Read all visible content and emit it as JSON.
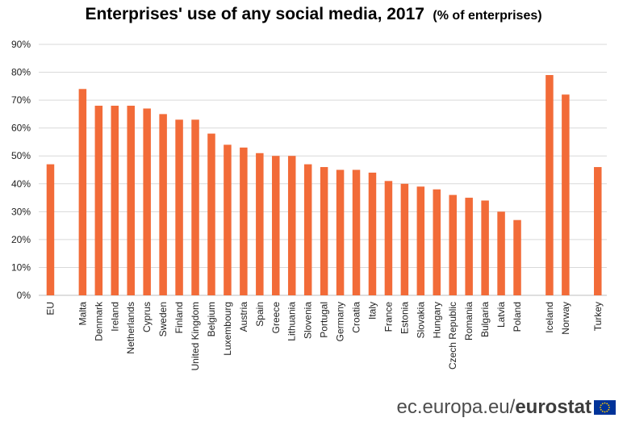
{
  "chart_data": {
    "type": "bar",
    "title": "Enterprises' use of any social media, 2017",
    "subtitle": "(% of enterprises)",
    "xlabel": "",
    "ylabel": "",
    "ylim": [
      0,
      90
    ],
    "yticks": [
      0,
      10,
      20,
      30,
      40,
      50,
      60,
      70,
      80,
      90
    ],
    "ytick_labels": [
      "0%",
      "10%",
      "20%",
      "30%",
      "40%",
      "50%",
      "60%",
      "70%",
      "80%",
      "90%"
    ],
    "grid": true,
    "bar_color": "#F26B38",
    "categories": [
      "EU",
      "Malta",
      "Denmark",
      "Ireland",
      "Netherlands",
      "Cyprus",
      "Sweden",
      "Finland",
      "United Kingdom",
      "Belgium",
      "Luxembourg",
      "Austria",
      "Spain",
      "Greece",
      "Lithuania",
      "Slovenia",
      "Portugal",
      "Germany",
      "Croatia",
      "Italy",
      "France",
      "Estonia",
      "Slovakia",
      "Hungary",
      "Czech Republic",
      "Romania",
      "Bulgaria",
      "Latvia",
      "Poland",
      "Iceland",
      "Norway",
      "Turkey"
    ],
    "values": [
      47,
      74,
      68,
      68,
      68,
      67,
      65,
      63,
      63,
      58,
      54,
      53,
      51,
      50,
      50,
      47,
      46,
      45,
      45,
      44,
      41,
      40,
      39,
      38,
      36,
      35,
      34,
      30,
      27,
      79,
      72,
      46
    ],
    "groups_after": [
      "EU",
      "Poland",
      "Norway"
    ]
  },
  "source": {
    "domain": "ec.europa.eu/",
    "brand": "eurostat"
  },
  "colors": {
    "grid": "#D9D9D9",
    "axis": "#BFBFBF",
    "flag_blue": "#003399",
    "flag_star": "#FFCC00"
  }
}
